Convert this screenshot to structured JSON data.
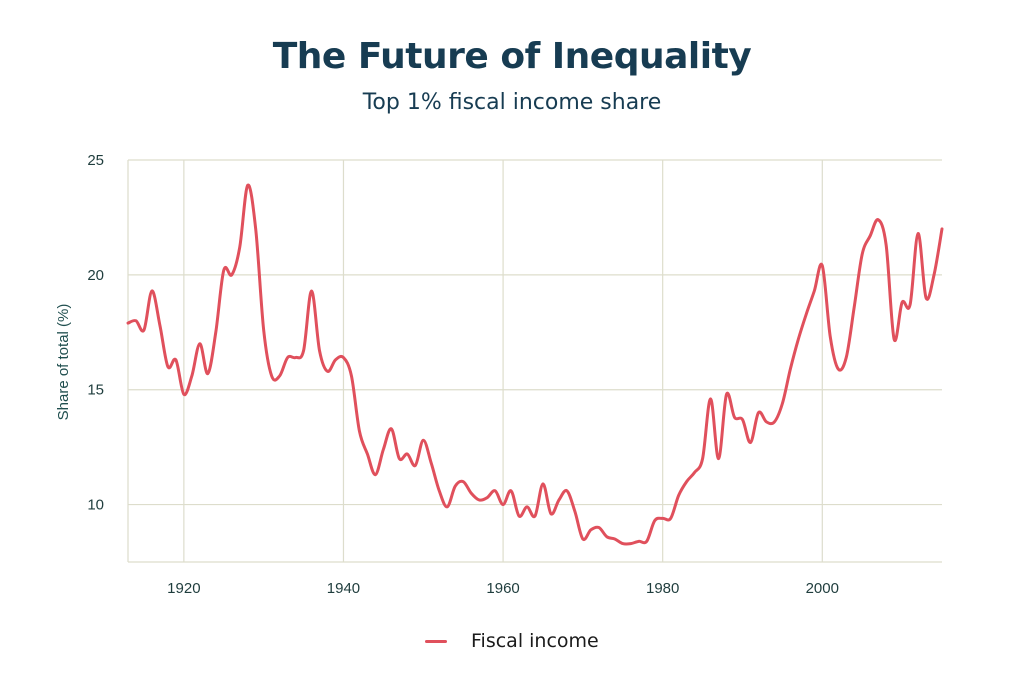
{
  "title": "The Future of Inequality",
  "subtitle": "Top 1% fiscal income share",
  "colors": {
    "line": "#e0505c",
    "grid": "#ddddcc",
    "title": "#173c52"
  },
  "chart_data": {
    "type": "line",
    "title": "The Future of Inequality",
    "subtitle": "Top 1% fiscal income share",
    "xlabel": "",
    "ylabel": "Share of total (%)",
    "xlim": [
      1913,
      2015
    ],
    "ylim": [
      7.5,
      25
    ],
    "x_ticks": [
      1920,
      1940,
      1960,
      1980,
      2000
    ],
    "y_ticks": [
      10,
      15,
      20,
      25
    ],
    "grid": true,
    "legend_position": "bottom",
    "series": [
      {
        "name": "Fiscal income",
        "color": "#e0505c",
        "x": [
          1913,
          1914,
          1915,
          1916,
          1917,
          1918,
          1919,
          1920,
          1921,
          1922,
          1923,
          1924,
          1925,
          1926,
          1927,
          1928,
          1929,
          1930,
          1931,
          1932,
          1933,
          1934,
          1935,
          1936,
          1937,
          1938,
          1939,
          1940,
          1941,
          1942,
          1943,
          1944,
          1945,
          1946,
          1947,
          1948,
          1949,
          1950,
          1951,
          1952,
          1953,
          1954,
          1955,
          1956,
          1957,
          1958,
          1959,
          1960,
          1961,
          1962,
          1963,
          1964,
          1965,
          1966,
          1967,
          1968,
          1969,
          1970,
          1971,
          1972,
          1973,
          1974,
          1975,
          1976,
          1977,
          1978,
          1979,
          1980,
          1981,
          1982,
          1983,
          1984,
          1985,
          1986,
          1987,
          1988,
          1989,
          1990,
          1991,
          1992,
          1993,
          1994,
          1995,
          1996,
          1997,
          1998,
          1999,
          2000,
          2001,
          2002,
          2003,
          2004,
          2005,
          2006,
          2007,
          2008,
          2009,
          2010,
          2011,
          2012,
          2013,
          2014,
          2015
        ],
        "values": [
          17.9,
          18.0,
          17.6,
          19.3,
          17.8,
          16.0,
          16.3,
          14.8,
          15.6,
          17.0,
          15.7,
          17.5,
          20.2,
          20.0,
          21.2,
          23.9,
          22.0,
          17.6,
          15.6,
          15.6,
          16.4,
          16.4,
          16.7,
          19.3,
          16.7,
          15.8,
          16.3,
          16.4,
          15.6,
          13.2,
          12.2,
          11.3,
          12.4,
          13.3,
          12.0,
          12.2,
          11.7,
          12.8,
          11.8,
          10.6,
          9.9,
          10.8,
          11.0,
          10.5,
          10.2,
          10.3,
          10.6,
          10.0,
          10.6,
          9.5,
          9.9,
          9.5,
          10.9,
          9.6,
          10.2,
          10.6,
          9.7,
          8.5,
          8.9,
          9.0,
          8.6,
          8.5,
          8.3,
          8.3,
          8.4,
          8.4,
          9.3,
          9.4,
          9.4,
          10.4,
          11.0,
          11.4,
          12.0,
          14.6,
          12.0,
          14.8,
          13.8,
          13.7,
          12.7,
          14.0,
          13.6,
          13.6,
          14.4,
          15.9,
          17.2,
          18.3,
          19.3,
          20.4,
          17.3,
          15.9,
          16.4,
          18.6,
          20.9,
          21.7,
          22.4,
          21.3,
          17.2,
          18.8,
          18.7,
          21.8,
          19.0,
          20.0,
          22.0
        ]
      }
    ]
  },
  "legend": {
    "label": "Fiscal income"
  }
}
